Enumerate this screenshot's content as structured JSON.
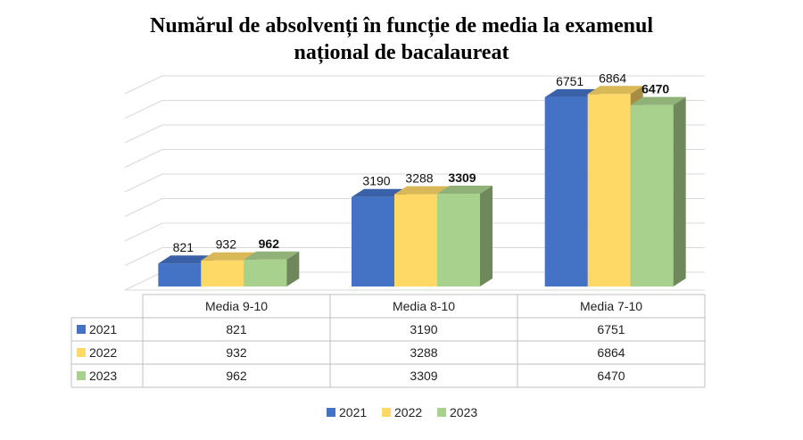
{
  "chart_data": {
    "type": "bar",
    "title": "Numărul de absolvenți în funcție de media la examenul național de bacalaureat",
    "title_lines": [
      "Numărul de absolvenți în funcție de media la examenul",
      "național de bacalaureat"
    ],
    "categories": [
      "Media 9-10",
      "Media 8-10",
      "Media 7-10"
    ],
    "series": [
      {
        "name": "2021",
        "values": [
          821,
          3190,
          6751
        ],
        "color": "#4472C4"
      },
      {
        "name": "2022",
        "values": [
          932,
          3288,
          6864
        ],
        "color": "#FFD966"
      },
      {
        "name": "2023",
        "values": [
          962,
          3309,
          6470
        ],
        "color": "#A9D18E"
      }
    ],
    "bold_series": "2023",
    "ylim": [
      0,
      7000
    ],
    "grid": true,
    "style": "3d-clustered-column",
    "data_table": true,
    "legend_position": "bottom"
  }
}
